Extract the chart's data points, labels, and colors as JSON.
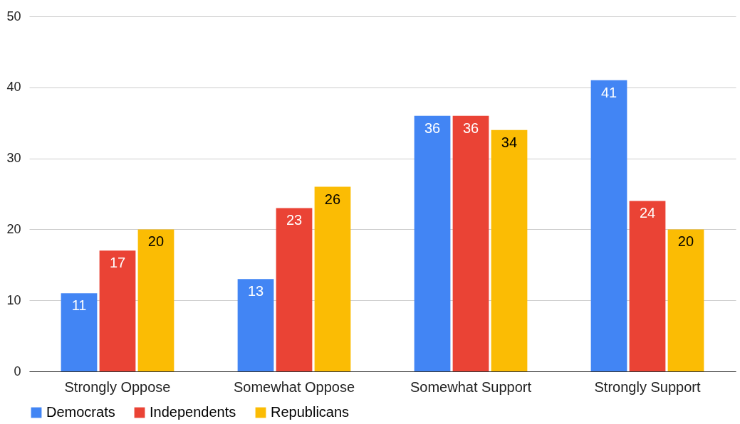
{
  "chart_data": {
    "type": "bar",
    "categories": [
      "Strongly Oppose",
      "Somewhat Oppose",
      "Somewhat Support",
      "Strongly Support"
    ],
    "series": [
      {
        "name": "Democrats",
        "color": "#4285f4",
        "values": [
          11,
          13,
          36,
          41
        ]
      },
      {
        "name": "Independents",
        "color": "#ea4335",
        "values": [
          17,
          23,
          36,
          24
        ]
      },
      {
        "name": "Republicans",
        "color": "#fbbc04",
        "values": [
          20,
          26,
          34,
          20
        ]
      }
    ],
    "ylim": [
      0,
      50
    ],
    "yticks": [
      0,
      10,
      20,
      30,
      40,
      50
    ],
    "grid": "y",
    "legend": "bottom",
    "data_labels": true
  }
}
